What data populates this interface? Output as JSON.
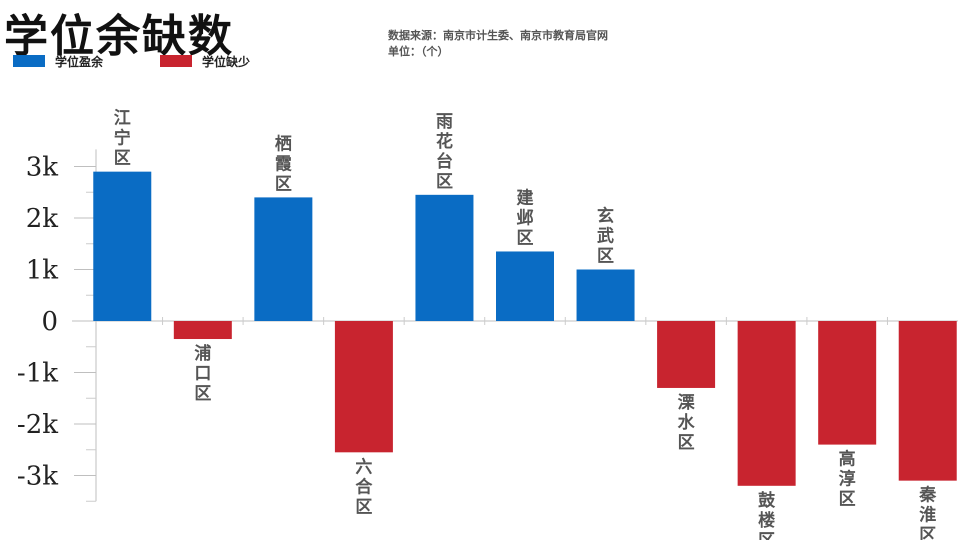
{
  "header": {
    "title": "学位余缺数",
    "source": "数据来源：南京市计生委、南京市教育局官网",
    "unit": "单位：（个）"
  },
  "legend": [
    {
      "label": "学位盈余",
      "color": "#0a6cc4"
    },
    {
      "label": "学位缺少",
      "color": "#c8242f"
    }
  ],
  "chart_data": {
    "type": "bar",
    "title": "学位余缺数",
    "categories": [
      "江宁区",
      "浦口区",
      "栖霞区",
      "六合区",
      "雨花台区",
      "建邺区",
      "玄武区",
      "溧水区",
      "鼓楼区",
      "高淳区",
      "秦淮区"
    ],
    "values": [
      2900,
      -350,
      2400,
      -2550,
      2450,
      1350,
      1000,
      -1300,
      -3200,
      -2400,
      -3100
    ],
    "yticks": [
      3000,
      2000,
      1000,
      0,
      -1000,
      -2000,
      -3000
    ],
    "ytick_labels": [
      "3k",
      "2k",
      "1k",
      "0",
      "-1k",
      "-2k",
      "-3k"
    ],
    "ylim": [
      -3500,
      3100
    ],
    "grid": false,
    "legend_position": "top-left",
    "colors": {
      "positive": "#0a6cc4",
      "negative": "#c8242f",
      "label": "#555555"
    }
  }
}
